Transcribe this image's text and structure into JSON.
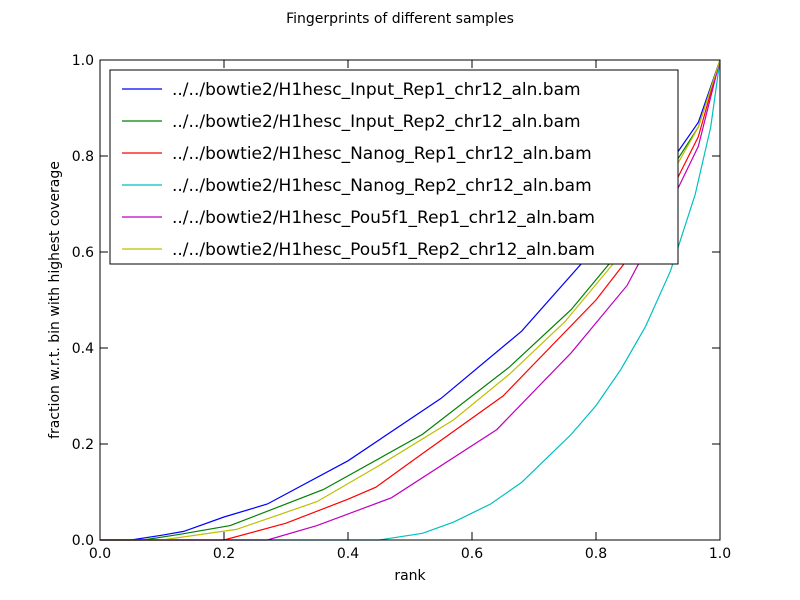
{
  "chart_data": {
    "type": "line",
    "title": "Fingerprints of different samples",
    "xlabel": "rank",
    "ylabel": "fraction w.r.t. bin with highest coverage",
    "xlim": [
      0.0,
      1.0
    ],
    "ylim": [
      0.0,
      1.0
    ],
    "xticks": [
      "0.0",
      "0.2",
      "0.4",
      "0.6",
      "0.8",
      "1.0"
    ],
    "yticks": [
      "0.0",
      "0.2",
      "0.4",
      "0.6",
      "0.8",
      "1.0"
    ],
    "grid": false,
    "legend_position": "upper-left",
    "series": [
      {
        "name": "../../bowtie2/H1hesc_Input_Rep1_chr12_aln.bam",
        "color": "#0000ff",
        "points": [
          [
            0,
            0
          ],
          [
            0.05,
            0
          ],
          [
            0.1,
            0.01
          ],
          [
            0.135,
            0.018
          ],
          [
            0.2,
            0.048
          ],
          [
            0.27,
            0.075
          ],
          [
            0.4,
            0.165
          ],
          [
            0.55,
            0.295
          ],
          [
            0.68,
            0.435
          ],
          [
            0.8,
            0.61
          ],
          [
            0.93,
            0.805
          ],
          [
            0.965,
            0.87
          ],
          [
            1.0,
            1.0
          ]
        ]
      },
      {
        "name": "../../bowtie2/H1hesc_Input_Rep2_chr12_aln.bam",
        "color": "#008000",
        "points": [
          [
            0,
            0
          ],
          [
            0.07,
            0
          ],
          [
            0.13,
            0.012
          ],
          [
            0.21,
            0.03
          ],
          [
            0.36,
            0.105
          ],
          [
            0.52,
            0.22
          ],
          [
            0.66,
            0.36
          ],
          [
            0.76,
            0.48
          ],
          [
            0.85,
            0.62
          ],
          [
            0.93,
            0.79
          ],
          [
            0.965,
            0.86
          ],
          [
            1.0,
            1.0
          ]
        ]
      },
      {
        "name": "../../bowtie2/H1hesc_Nanog_Rep1_chr12_aln.bam",
        "color": "#ff0000",
        "points": [
          [
            0,
            0
          ],
          [
            0.2,
            0
          ],
          [
            0.3,
            0.035
          ],
          [
            0.4,
            0.085
          ],
          [
            0.445,
            0.11
          ],
          [
            0.52,
            0.18
          ],
          [
            0.65,
            0.3
          ],
          [
            0.8,
            0.5
          ],
          [
            0.86,
            0.6
          ],
          [
            0.93,
            0.75
          ],
          [
            0.965,
            0.84
          ],
          [
            1.0,
            1.0
          ]
        ]
      },
      {
        "name": "../../bowtie2/H1hesc_Nanog_Rep2_chr12_aln.bam",
        "color": "#00bfbf",
        "points": [
          [
            0,
            0
          ],
          [
            0.45,
            0
          ],
          [
            0.52,
            0.014
          ],
          [
            0.57,
            0.037
          ],
          [
            0.63,
            0.075
          ],
          [
            0.68,
            0.12
          ],
          [
            0.72,
            0.17
          ],
          [
            0.76,
            0.22
          ],
          [
            0.8,
            0.28
          ],
          [
            0.84,
            0.355
          ],
          [
            0.88,
            0.445
          ],
          [
            0.92,
            0.56
          ],
          [
            0.96,
            0.72
          ],
          [
            0.985,
            0.86
          ],
          [
            1.0,
            1.0
          ]
        ]
      },
      {
        "name": "../../bowtie2/H1hesc_Pou5f1_Rep1_chr12_aln.bam",
        "color": "#bf00bf",
        "points": [
          [
            0,
            0
          ],
          [
            0.27,
            0
          ],
          [
            0.35,
            0.03
          ],
          [
            0.47,
            0.088
          ],
          [
            0.64,
            0.23
          ],
          [
            0.76,
            0.39
          ],
          [
            0.85,
            0.53
          ],
          [
            0.92,
            0.7
          ],
          [
            0.965,
            0.82
          ],
          [
            1.0,
            1.0
          ]
        ]
      },
      {
        "name": "../../bowtie2/H1hesc_Pou5f1_Rep2_chr12_aln.bam",
        "color": "#bfbf00",
        "points": [
          [
            0,
            0
          ],
          [
            0.1,
            0
          ],
          [
            0.22,
            0.022
          ],
          [
            0.35,
            0.08
          ],
          [
            0.45,
            0.155
          ],
          [
            0.57,
            0.25
          ],
          [
            0.66,
            0.345
          ],
          [
            0.75,
            0.455
          ],
          [
            0.85,
            0.61
          ],
          [
            0.93,
            0.78
          ],
          [
            0.965,
            0.86
          ],
          [
            1.0,
            1.0
          ]
        ]
      }
    ]
  }
}
